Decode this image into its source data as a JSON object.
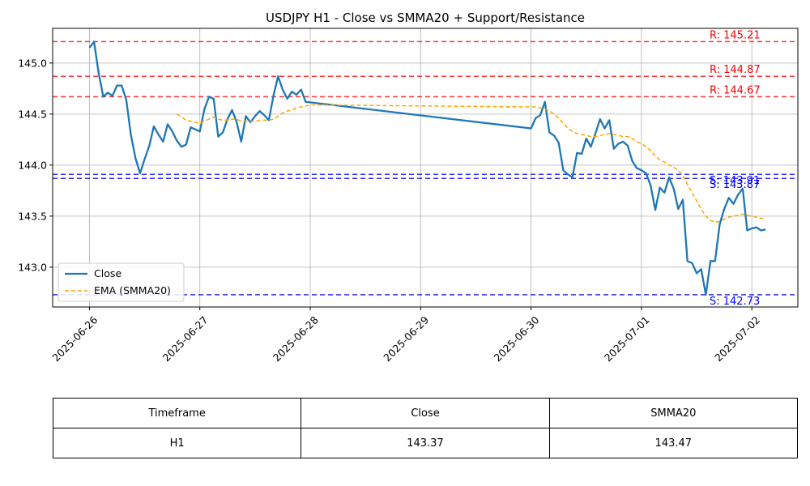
{
  "chart_data": {
    "type": "line",
    "title": "USDJPY H1 - Close vs SMMA20 + Support/Resistance",
    "xlabel": "",
    "ylabel": "",
    "x_ticks": [
      "2025-06-26",
      "2025-06-27",
      "2025-06-28",
      "2025-06-29",
      "2025-06-30",
      "2025-07-01",
      "2025-07-02"
    ],
    "y_ticks": [
      143.0,
      143.5,
      144.0,
      144.5,
      145.0
    ],
    "y_tick_labels": [
      "143.0",
      "143.5",
      "144.0",
      "144.5",
      "145.0"
    ],
    "xlim": [
      "2025-06-25T16:00",
      "2025-07-02T10:00"
    ],
    "ylim": [
      142.61,
      145.34
    ],
    "grid": true,
    "legend_placement": "lower-left",
    "series": [
      {
        "name": "Close",
        "color": "#1f77b4",
        "style": "solid",
        "points": [
          [
            "2025-06-26T00:00",
            145.15
          ],
          [
            "2025-06-26T01:00",
            145.21
          ],
          [
            "2025-06-26T02:00",
            144.9
          ],
          [
            "2025-06-26T03:00",
            144.67
          ],
          [
            "2025-06-26T04:00",
            144.71
          ],
          [
            "2025-06-26T05:00",
            144.68
          ],
          [
            "2025-06-26T06:00",
            144.78
          ],
          [
            "2025-06-26T07:00",
            144.78
          ],
          [
            "2025-06-26T08:00",
            144.64
          ],
          [
            "2025-06-26T09:00",
            144.3
          ],
          [
            "2025-06-26T10:00",
            144.07
          ],
          [
            "2025-06-26T11:00",
            143.92
          ],
          [
            "2025-06-26T12:00",
            144.06
          ],
          [
            "2025-06-26T13:00",
            144.19
          ],
          [
            "2025-06-26T14:00",
            144.38
          ],
          [
            "2025-06-26T15:00",
            144.3
          ],
          [
            "2025-06-26T16:00",
            144.23
          ],
          [
            "2025-06-26T17:00",
            144.4
          ],
          [
            "2025-06-26T18:00",
            144.33
          ],
          [
            "2025-06-26T19:00",
            144.24
          ],
          [
            "2025-06-26T20:00",
            144.18
          ],
          [
            "2025-06-26T21:00",
            144.2
          ],
          [
            "2025-06-26T22:00",
            144.37
          ],
          [
            "2025-06-26T23:00",
            144.35
          ],
          [
            "2025-06-27T00:00",
            144.33
          ],
          [
            "2025-06-27T01:00",
            144.55
          ],
          [
            "2025-06-27T02:00",
            144.67
          ],
          [
            "2025-06-27T03:00",
            144.65
          ],
          [
            "2025-06-27T04:00",
            144.28
          ],
          [
            "2025-06-27T05:00",
            144.32
          ],
          [
            "2025-06-27T06:00",
            144.45
          ],
          [
            "2025-06-27T07:00",
            144.54
          ],
          [
            "2025-06-27T08:00",
            144.42
          ],
          [
            "2025-06-27T09:00",
            144.23
          ],
          [
            "2025-06-27T10:00",
            144.48
          ],
          [
            "2025-06-27T11:00",
            144.42
          ],
          [
            "2025-06-27T12:00",
            144.48
          ],
          [
            "2025-06-27T13:00",
            144.53
          ],
          [
            "2025-06-27T14:00",
            144.49
          ],
          [
            "2025-06-27T15:00",
            144.44
          ],
          [
            "2025-06-27T16:00",
            144.68
          ],
          [
            "2025-06-27T17:00",
            144.87
          ],
          [
            "2025-06-27T18:00",
            144.74
          ],
          [
            "2025-06-27T19:00",
            144.65
          ],
          [
            "2025-06-27T20:00",
            144.72
          ],
          [
            "2025-06-27T21:00",
            144.69
          ],
          [
            "2025-06-27T22:00",
            144.74
          ],
          [
            "2025-06-27T23:00",
            144.62
          ],
          [
            "2025-06-30T00:00",
            144.36
          ],
          [
            "2025-06-30T01:00",
            144.46
          ],
          [
            "2025-06-30T02:00",
            144.49
          ],
          [
            "2025-06-30T03:00",
            144.62
          ],
          [
            "2025-06-30T04:00",
            144.32
          ],
          [
            "2025-06-30T05:00",
            144.29
          ],
          [
            "2025-06-30T06:00",
            144.22
          ],
          [
            "2025-06-30T07:00",
            143.95
          ],
          [
            "2025-06-30T08:00",
            143.91
          ],
          [
            "2025-06-30T09:00",
            143.88
          ],
          [
            "2025-06-30T10:00",
            144.12
          ],
          [
            "2025-06-30T11:00",
            144.11
          ],
          [
            "2025-06-30T12:00",
            144.26
          ],
          [
            "2025-06-30T13:00",
            144.18
          ],
          [
            "2025-06-30T14:00",
            144.31
          ],
          [
            "2025-06-30T15:00",
            144.45
          ],
          [
            "2025-06-30T16:00",
            144.36
          ],
          [
            "2025-06-30T17:00",
            144.44
          ],
          [
            "2025-06-30T18:00",
            144.16
          ],
          [
            "2025-06-30T19:00",
            144.21
          ],
          [
            "2025-06-30T20:00",
            144.23
          ],
          [
            "2025-06-30T21:00",
            144.19
          ],
          [
            "2025-06-30T22:00",
            144.04
          ],
          [
            "2025-06-30T23:00",
            143.97
          ],
          [
            "2025-07-01T00:00",
            143.95
          ],
          [
            "2025-07-01T01:00",
            143.92
          ],
          [
            "2025-07-01T02:00",
            143.8
          ],
          [
            "2025-07-01T03:00",
            143.56
          ],
          [
            "2025-07-01T04:00",
            143.78
          ],
          [
            "2025-07-01T05:00",
            143.73
          ],
          [
            "2025-07-01T06:00",
            143.88
          ],
          [
            "2025-07-01T07:00",
            143.77
          ],
          [
            "2025-07-01T08:00",
            143.57
          ],
          [
            "2025-07-01T09:00",
            143.66
          ],
          [
            "2025-07-01T10:00",
            143.06
          ],
          [
            "2025-07-01T11:00",
            143.04
          ],
          [
            "2025-07-01T12:00",
            142.94
          ],
          [
            "2025-07-01T13:00",
            142.98
          ],
          [
            "2025-07-01T14:00",
            142.73
          ],
          [
            "2025-07-01T15:00",
            143.06
          ],
          [
            "2025-07-01T16:00",
            143.06
          ],
          [
            "2025-07-01T17:00",
            143.42
          ],
          [
            "2025-07-01T18:00",
            143.57
          ],
          [
            "2025-07-01T19:00",
            143.68
          ],
          [
            "2025-07-01T20:00",
            143.62
          ],
          [
            "2025-07-01T21:00",
            143.71
          ],
          [
            "2025-07-01T22:00",
            143.77
          ],
          [
            "2025-07-01T23:00",
            143.36
          ],
          [
            "2025-07-02T00:00",
            143.38
          ],
          [
            "2025-07-02T01:00",
            143.39
          ],
          [
            "2025-07-02T02:00",
            143.36
          ],
          [
            "2025-07-02T03:00",
            143.37
          ]
        ]
      },
      {
        "name": "EMA (SMMA20)",
        "color": "#ffa500",
        "style": "dashed",
        "points": [
          [
            "2025-06-26T19:00",
            144.5
          ],
          [
            "2025-06-26T20:00",
            144.47
          ],
          [
            "2025-06-26T21:00",
            144.44
          ],
          [
            "2025-06-26T22:00",
            144.43
          ],
          [
            "2025-06-26T23:00",
            144.42
          ],
          [
            "2025-06-27T00:00",
            144.41
          ],
          [
            "2025-06-27T01:00",
            144.43
          ],
          [
            "2025-06-27T02:00",
            144.45
          ],
          [
            "2025-06-27T03:00",
            144.47
          ],
          [
            "2025-06-27T04:00",
            144.45
          ],
          [
            "2025-06-27T05:00",
            144.44
          ],
          [
            "2025-06-27T06:00",
            144.44
          ],
          [
            "2025-06-27T07:00",
            144.45
          ],
          [
            "2025-06-27T08:00",
            144.45
          ],
          [
            "2025-06-27T09:00",
            144.43
          ],
          [
            "2025-06-27T10:00",
            144.43
          ],
          [
            "2025-06-27T11:00",
            144.43
          ],
          [
            "2025-06-27T12:00",
            144.43
          ],
          [
            "2025-06-27T13:00",
            144.44
          ],
          [
            "2025-06-27T14:00",
            144.44
          ],
          [
            "2025-06-27T15:00",
            144.44
          ],
          [
            "2025-06-27T16:00",
            144.45
          ],
          [
            "2025-06-27T17:00",
            144.48
          ],
          [
            "2025-06-27T18:00",
            144.51
          ],
          [
            "2025-06-27T19:00",
            144.53
          ],
          [
            "2025-06-27T20:00",
            144.54
          ],
          [
            "2025-06-27T21:00",
            144.56
          ],
          [
            "2025-06-27T22:00",
            144.57
          ],
          [
            "2025-06-27T23:00",
            144.58
          ],
          [
            "2025-06-28T00:00",
            144.59
          ],
          [
            "2025-06-30T00:00",
            144.57
          ],
          [
            "2025-06-30T01:00",
            144.57
          ],
          [
            "2025-06-30T02:00",
            144.56
          ],
          [
            "2025-06-30T03:00",
            144.55
          ],
          [
            "2025-06-30T04:00",
            144.53
          ],
          [
            "2025-06-30T05:00",
            144.5
          ],
          [
            "2025-06-30T06:00",
            144.46
          ],
          [
            "2025-06-30T07:00",
            144.41
          ],
          [
            "2025-06-30T08:00",
            144.36
          ],
          [
            "2025-06-30T09:00",
            144.33
          ],
          [
            "2025-06-30T10:00",
            144.31
          ],
          [
            "2025-06-30T11:00",
            144.3
          ],
          [
            "2025-06-30T12:00",
            144.29
          ],
          [
            "2025-06-30T13:00",
            144.28
          ],
          [
            "2025-06-30T14:00",
            144.28
          ],
          [
            "2025-06-30T15:00",
            144.29
          ],
          [
            "2025-06-30T16:00",
            144.3
          ],
          [
            "2025-06-30T17:00",
            144.31
          ],
          [
            "2025-06-30T18:00",
            144.3
          ],
          [
            "2025-06-30T19:00",
            144.29
          ],
          [
            "2025-06-30T20:00",
            144.28
          ],
          [
            "2025-06-30T21:00",
            144.28
          ],
          [
            "2025-06-30T22:00",
            144.26
          ],
          [
            "2025-06-30T23:00",
            144.23
          ],
          [
            "2025-07-01T00:00",
            144.21
          ],
          [
            "2025-07-01T01:00",
            144.18
          ],
          [
            "2025-07-01T02:00",
            144.14
          ],
          [
            "2025-07-01T03:00",
            144.09
          ],
          [
            "2025-07-01T04:00",
            144.05
          ],
          [
            "2025-07-01T05:00",
            144.03
          ],
          [
            "2025-07-01T06:00",
            144.0
          ],
          [
            "2025-07-01T07:00",
            143.98
          ],
          [
            "2025-07-01T08:00",
            143.95
          ],
          [
            "2025-07-01T09:00",
            143.9
          ],
          [
            "2025-07-01T10:00",
            143.81
          ],
          [
            "2025-07-01T11:00",
            143.73
          ],
          [
            "2025-07-01T12:00",
            143.65
          ],
          [
            "2025-07-01T13:00",
            143.57
          ],
          [
            "2025-07-01T14:00",
            143.5
          ],
          [
            "2025-07-01T15:00",
            143.46
          ],
          [
            "2025-07-01T16:00",
            143.44
          ],
          [
            "2025-07-01T17:00",
            143.45
          ],
          [
            "2025-07-01T18:00",
            143.47
          ],
          [
            "2025-07-01T19:00",
            143.49
          ],
          [
            "2025-07-01T20:00",
            143.5
          ],
          [
            "2025-07-01T21:00",
            143.51
          ],
          [
            "2025-07-01T22:00",
            143.52
          ],
          [
            "2025-07-01T23:00",
            143.51
          ],
          [
            "2025-07-02T00:00",
            143.5
          ],
          [
            "2025-07-02T01:00",
            143.49
          ],
          [
            "2025-07-02T02:00",
            143.48
          ],
          [
            "2025-07-02T03:00",
            143.47
          ]
        ]
      }
    ],
    "levels": [
      {
        "type": "resistance",
        "value": 145.21,
        "label": "R: 145.21",
        "color": "#ff0000"
      },
      {
        "type": "resistance",
        "value": 144.87,
        "label": "R: 144.87",
        "color": "#ff0000"
      },
      {
        "type": "resistance",
        "value": 144.67,
        "label": "R: 144.67",
        "color": "#ff0000"
      },
      {
        "type": "support",
        "value": 143.91,
        "label": "S: 143.91",
        "color": "#0000ff"
      },
      {
        "type": "support",
        "value": 143.87,
        "label": "S: 143.87",
        "color": "#0000ff"
      },
      {
        "type": "support",
        "value": 142.73,
        "label": "S: 142.73",
        "color": "#0000ff"
      }
    ]
  },
  "table": {
    "headers": [
      "Timeframe",
      "Close",
      "SMMA20"
    ],
    "rows": [
      [
        "H1",
        "143.37",
        "143.47"
      ]
    ]
  }
}
